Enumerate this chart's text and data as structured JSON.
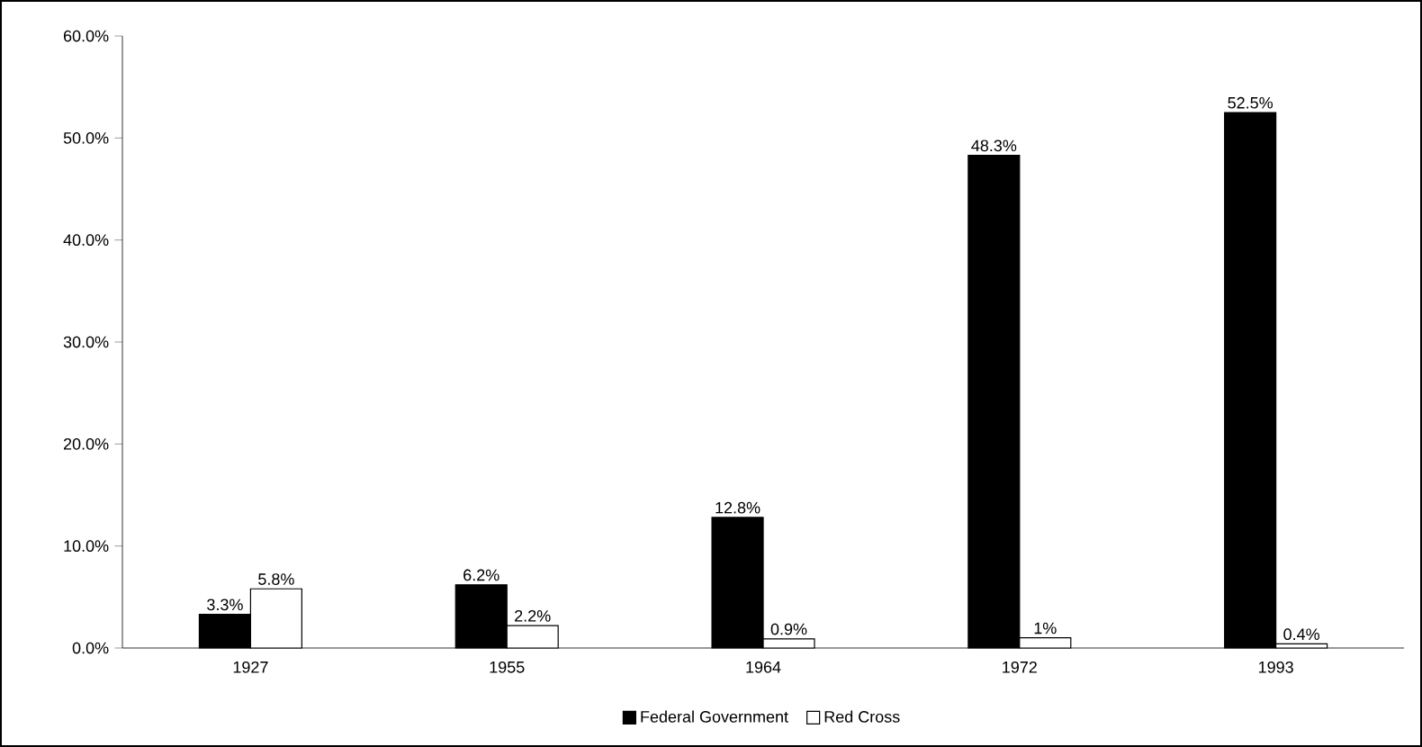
{
  "chart_data": {
    "type": "bar",
    "categories": [
      "1927",
      "1955",
      "1964",
      "1972",
      "1993"
    ],
    "series": [
      {
        "name": "Federal Government",
        "color": "#000000",
        "values": [
          3.3,
          6.2,
          12.8,
          48.3,
          52.5
        ],
        "value_labels": [
          "3.3%",
          "6.2%",
          "12.8%",
          "48.3%",
          "52.5%"
        ]
      },
      {
        "name": "Red Cross",
        "color": "#ffffff",
        "values": [
          5.8,
          2.2,
          0.9,
          1,
          0.4
        ],
        "value_labels": [
          "5.8%",
          "2.2%",
          "0.9%",
          "1%",
          "0.4%"
        ]
      }
    ],
    "ylim": [
      0,
      60
    ],
    "yticks": [
      {
        "value": 0,
        "label": "0.0%"
      },
      {
        "value": 10,
        "label": "10.0%"
      },
      {
        "value": 20,
        "label": "20.0%"
      },
      {
        "value": 30,
        "label": "30.0%"
      },
      {
        "value": 40,
        "label": "40.0%"
      },
      {
        "value": 50,
        "label": "50.0%"
      },
      {
        "value": 60,
        "label": "60.0%"
      }
    ],
    "grid": false,
    "legend": "bottom"
  }
}
